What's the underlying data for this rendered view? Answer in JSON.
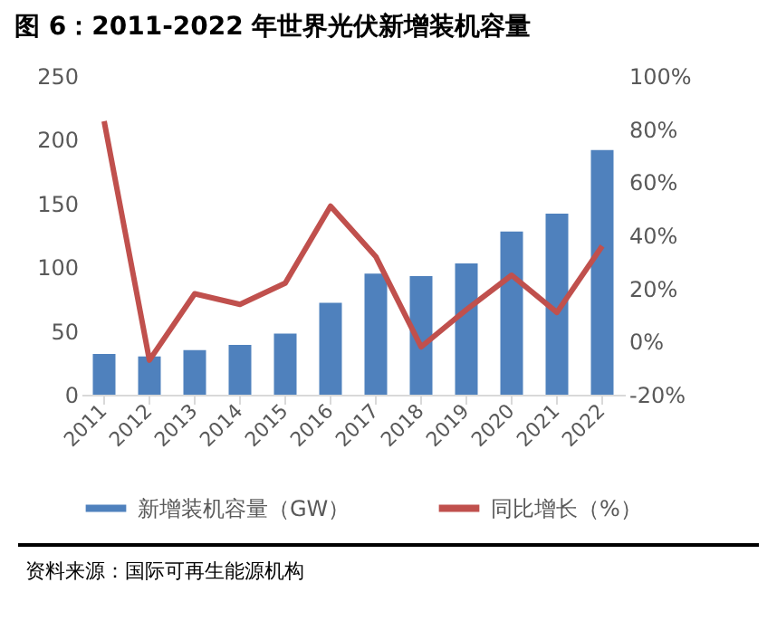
{
  "chart_data": {
    "type": "bar",
    "title": "图 6：2011-2022 年世界光伏新增装机容量",
    "categories": [
      "2011",
      "2012",
      "2013",
      "2014",
      "2015",
      "2016",
      "2017",
      "2018",
      "2019",
      "2020",
      "2021",
      "2022"
    ],
    "series": [
      {
        "name": "新增装机容量（GW）",
        "color": "#4f81bd",
        "values": [
          32,
          30,
          35,
          39,
          48,
          72,
          95,
          93,
          103,
          128,
          142,
          192
        ]
      },
      {
        "name": "同比增长（%）",
        "type": "line",
        "axis": "y2",
        "color": "#c0504d",
        "values": [
          83,
          -7,
          18,
          14,
          22,
          51,
          32,
          -2,
          12,
          25,
          11,
          36
        ]
      }
    ],
    "ylim": [
      0,
      250
    ],
    "yticks": [
      0,
      50,
      100,
      150,
      200,
      250
    ],
    "y2lim": [
      -20,
      100
    ],
    "y2ticks": [
      {
        "value": -20,
        "label": "-20%"
      },
      {
        "value": 0,
        "label": "0%"
      },
      {
        "value": 20,
        "label": "20%"
      },
      {
        "value": 40,
        "label": "40%"
      },
      {
        "value": 60,
        "label": "60%"
      },
      {
        "value": 80,
        "label": "80%"
      },
      {
        "value": 100,
        "label": "100%"
      }
    ],
    "legend": "bottom",
    "grid": false,
    "annotations": [
      "资料来源：国际可再生能源机构"
    ]
  }
}
